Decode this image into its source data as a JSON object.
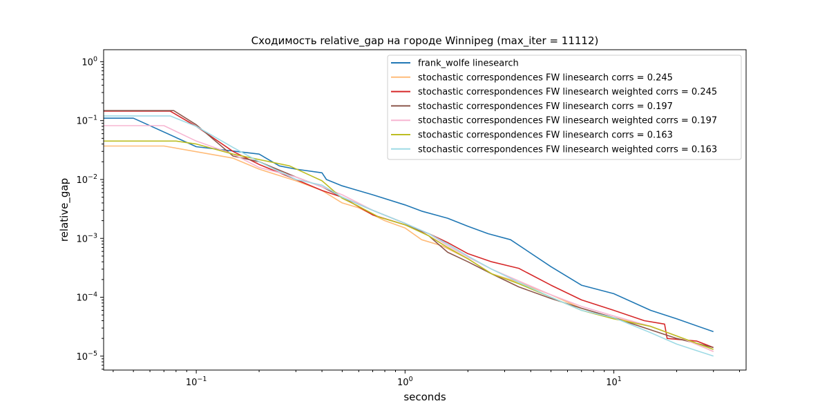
{
  "chart_data": {
    "type": "line",
    "title": "Сходимость relative_gap на городе Winnipeg  (max_iter = 11112)",
    "xlabel": "seconds",
    "ylabel": "relative_gap",
    "xscale": "log",
    "yscale": "log",
    "xlim": [
      0.036,
      43
    ],
    "ylim": [
      5.8e-06,
      1.6
    ],
    "grid": false,
    "legend_position": "top-right",
    "x_ticks": [
      {
        "value": 0.1,
        "base": "10",
        "exp": "−1"
      },
      {
        "value": 1,
        "base": "10",
        "exp": "0"
      },
      {
        "value": 10,
        "base": "10",
        "exp": "1"
      }
    ],
    "y_ticks": [
      {
        "value": 1,
        "base": "10",
        "exp": "0"
      },
      {
        "value": 0.1,
        "base": "10",
        "exp": "−1"
      },
      {
        "value": 0.01,
        "base": "10",
        "exp": "−2"
      },
      {
        "value": 0.001,
        "base": "10",
        "exp": "−3"
      },
      {
        "value": 0.0001,
        "base": "10",
        "exp": "−4"
      },
      {
        "value": 1e-05,
        "base": "10",
        "exp": "−5"
      }
    ],
    "series": [
      {
        "name": "frank_wolfe linesearch",
        "color": "#1f77b4",
        "x": [
          0.036,
          0.05,
          0.1,
          0.2,
          0.25,
          0.3,
          0.4,
          0.42,
          0.5,
          0.7,
          1.0,
          1.2,
          1.6,
          2.0,
          2.5,
          3.2,
          5.0,
          7.0,
          10,
          15,
          20,
          30
        ],
        "y": [
          0.11,
          0.11,
          0.036,
          0.027,
          0.017,
          0.015,
          0.013,
          0.01,
          0.0078,
          0.0055,
          0.0037,
          0.0029,
          0.0022,
          0.0016,
          0.0012,
          0.00095,
          0.00033,
          0.00016,
          0.000115,
          6e-05,
          4.3e-05,
          2.6e-05
        ]
      },
      {
        "name": "stochastic correspondences FW linesearch corrs = 0.245",
        "color": "#ffbb78",
        "x": [
          0.036,
          0.07,
          0.15,
          0.2,
          0.3,
          0.4,
          0.5,
          0.6,
          0.8,
          1.0,
          1.2,
          1.5,
          2.0,
          2.6,
          3.5,
          5.0,
          7.0,
          10,
          15,
          20,
          30
        ],
        "y": [
          0.037,
          0.037,
          0.023,
          0.015,
          0.0095,
          0.0065,
          0.004,
          0.0033,
          0.002,
          0.0015,
          0.00095,
          0.00075,
          0.00045,
          0.00025,
          0.00018,
          0.00011,
          6.5e-05,
          4.5e-05,
          3.2e-05,
          2.2e-05,
          1.2e-05
        ]
      },
      {
        "name": "stochastic correspondences FW linesearch weighted corrs = 0.245",
        "color": "#d62728",
        "x": [
          0.036,
          0.075,
          0.1,
          0.15,
          0.2,
          0.3,
          0.4,
          0.5,
          0.7,
          1.0,
          1.3,
          1.6,
          2.0,
          2.6,
          3.5,
          5.0,
          7.0,
          10,
          14,
          17.5,
          18,
          25,
          30
        ],
        "y": [
          0.145,
          0.145,
          0.08,
          0.03,
          0.018,
          0.01,
          0.0065,
          0.005,
          0.0025,
          0.0017,
          0.0012,
          0.00085,
          0.00055,
          0.0004,
          0.00031,
          0.00016,
          9e-05,
          6e-05,
          4e-05,
          3.5e-05,
          2e-05,
          1.8e-05,
          1.4e-05
        ]
      },
      {
        "name": "stochastic correspondences FW linesearch corrs = 0.197",
        "color": "#8c564b",
        "x": [
          0.036,
          0.078,
          0.1,
          0.15,
          0.2,
          0.3,
          0.4,
          0.5,
          0.7,
          1.0,
          1.3,
          1.6,
          2.0,
          2.6,
          3.5,
          5.0,
          7.0,
          10,
          15,
          20,
          30
        ],
        "y": [
          0.148,
          0.148,
          0.085,
          0.025,
          0.02,
          0.011,
          0.0075,
          0.005,
          0.003,
          0.0018,
          0.0011,
          0.00058,
          0.0004,
          0.00025,
          0.00015,
          9.5e-05,
          6.5e-05,
          4.5e-05,
          2.8e-05,
          2e-05,
          1.4e-05
        ]
      },
      {
        "name": "stochastic correspondences FW linesearch weighted corrs = 0.197",
        "color": "#f7b6d2",
        "x": [
          0.036,
          0.07,
          0.1,
          0.15,
          0.2,
          0.3,
          0.4,
          0.5,
          0.7,
          1.0,
          1.3,
          1.6,
          2.0,
          2.6,
          3.5,
          5.0,
          7.0,
          10,
          15,
          20,
          30
        ],
        "y": [
          0.082,
          0.082,
          0.045,
          0.027,
          0.016,
          0.011,
          0.0075,
          0.0055,
          0.003,
          0.0018,
          0.0012,
          0.00075,
          0.00048,
          0.0003,
          0.00019,
          0.00011,
          7e-05,
          4.8e-05,
          3.2e-05,
          2.2e-05,
          1.2e-05
        ]
      },
      {
        "name": "stochastic correspondences FW linesearch corrs = 0.163",
        "color": "#bcbd22",
        "x": [
          0.036,
          0.08,
          0.1,
          0.15,
          0.28,
          0.4,
          0.5,
          0.6,
          0.75,
          1.0,
          1.3,
          1.6,
          2.0,
          2.6,
          3.5,
          5.0,
          7.0,
          10,
          15,
          20,
          30
        ],
        "y": [
          0.045,
          0.045,
          0.04,
          0.027,
          0.017,
          0.0095,
          0.0048,
          0.0035,
          0.0023,
          0.0017,
          0.0011,
          0.0007,
          0.00045,
          0.00025,
          0.00017,
          0.0001,
          6e-05,
          4.3e-05,
          3.2e-05,
          2.2e-05,
          1.3e-05
        ]
      },
      {
        "name": "stochastic correspondences FW linesearch weighted corrs = 0.163",
        "color": "#9edae5",
        "x": [
          0.036,
          0.075,
          0.1,
          0.15,
          0.2,
          0.3,
          0.4,
          0.5,
          0.7,
          1.0,
          1.3,
          1.6,
          2.0,
          2.6,
          3.5,
          5.0,
          7.0,
          10,
          15,
          20,
          30
        ],
        "y": [
          0.12,
          0.12,
          0.08,
          0.035,
          0.02,
          0.01,
          0.008,
          0.005,
          0.003,
          0.0018,
          0.0012,
          0.0008,
          0.0005,
          0.0003,
          0.00018,
          0.0001,
          6e-05,
          4.5e-05,
          2.5e-05,
          1.6e-05,
          1e-05
        ]
      }
    ]
  }
}
